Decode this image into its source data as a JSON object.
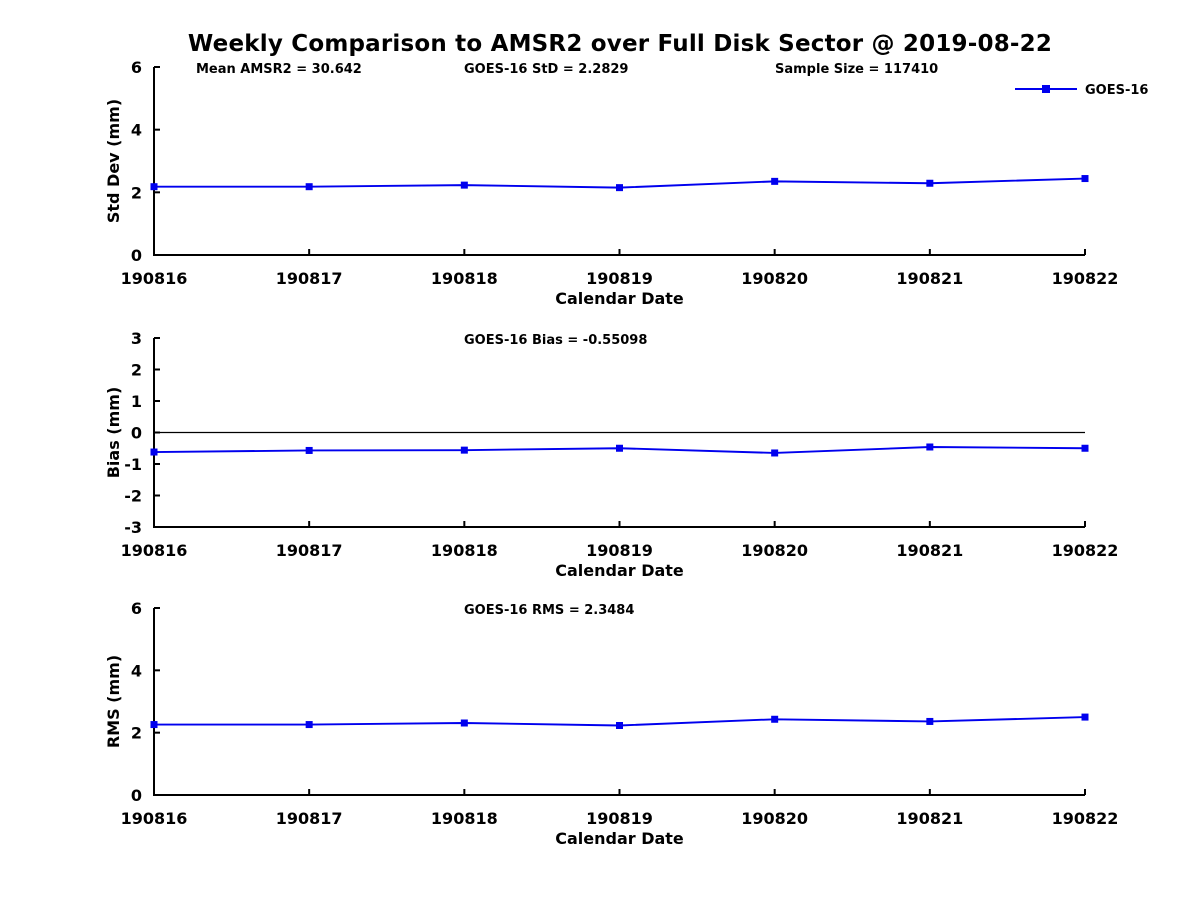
{
  "title": "Weekly Comparison to AMSR2 over Full Disk Sector @ 2019-08-22",
  "colors": {
    "series": "#0000EE",
    "axis": "#000000",
    "zero_line": "#000000",
    "background": "#FFFFFF",
    "text": "#000000"
  },
  "legend": {
    "label": "GOES-16",
    "marker": "square-icon",
    "position": "top-right"
  },
  "chart_data": [
    {
      "type": "line",
      "title": "",
      "categories": [
        "190816",
        "190817",
        "190818",
        "190819",
        "190820",
        "190821",
        "190822"
      ],
      "series": [
        {
          "name": "GOES-16",
          "values": [
            2.18,
            2.18,
            2.23,
            2.15,
            2.35,
            2.29,
            2.44
          ]
        }
      ],
      "xlabel": "Calendar Date",
      "ylabel": "Std Dev (mm)",
      "ylim": [
        0,
        6
      ],
      "yticks": [
        0,
        2,
        4,
        6
      ],
      "grid": false,
      "zero_line": false,
      "legend_visible": true,
      "legend_position": "top-right",
      "annotations": [
        "Mean AMSR2 = 30.642",
        "GOES-16 StD = 2.2829",
        "Sample Size = 117410"
      ]
    },
    {
      "type": "line",
      "title": "",
      "categories": [
        "190816",
        "190817",
        "190818",
        "190819",
        "190820",
        "190821",
        "190822"
      ],
      "series": [
        {
          "name": "GOES-16",
          "values": [
            -0.62,
            -0.57,
            -0.56,
            -0.5,
            -0.65,
            -0.46,
            -0.5
          ]
        }
      ],
      "xlabel": "Calendar Date",
      "ylabel": "Bias (mm)",
      "ylim": [
        -3,
        3
      ],
      "yticks": [
        -3,
        -2,
        -1,
        0,
        1,
        2,
        3
      ],
      "grid": false,
      "zero_line": true,
      "legend_visible": false,
      "annotations": [
        "GOES-16 Bias  = -0.55098"
      ]
    },
    {
      "type": "line",
      "title": "",
      "categories": [
        "190816",
        "190817",
        "190818",
        "190819",
        "190820",
        "190821",
        "190822"
      ],
      "series": [
        {
          "name": "GOES-16",
          "values": [
            2.26,
            2.26,
            2.31,
            2.23,
            2.43,
            2.36,
            2.5
          ]
        }
      ],
      "xlabel": "Calendar Date",
      "ylabel": "RMS (mm)",
      "ylim": [
        0,
        6
      ],
      "yticks": [
        0,
        2,
        4,
        6
      ],
      "grid": false,
      "zero_line": false,
      "legend_visible": false,
      "annotations": [
        "GOES-16 RMS = 2.3484"
      ]
    }
  ]
}
